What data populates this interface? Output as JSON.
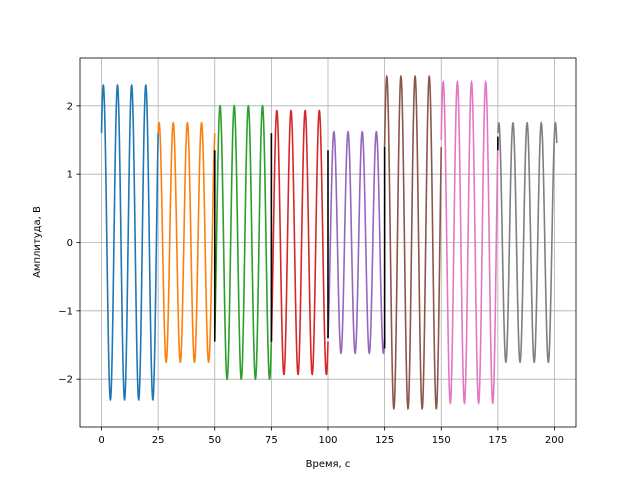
{
  "chart_data": {
    "type": "line",
    "xlabel": "Время, с",
    "ylabel": "Амплитуда, В",
    "xlim": [
      -9.5,
      209.5
    ],
    "ylim": [
      -2.7,
      2.7
    ],
    "xticks": [
      0,
      25,
      50,
      75,
      100,
      125,
      150,
      175,
      200
    ],
    "yticks": [
      -2,
      -1,
      0,
      1,
      2
    ],
    "ytick_labels": [
      "−2",
      "−1",
      "0",
      "1",
      "2"
    ],
    "grid": true,
    "legend": "none",
    "segments": [
      {
        "x_start": 0,
        "x_end": 25,
        "amplitude": 2.3,
        "period": 6.25,
        "start_value": 1.6,
        "color": "#1f77b4"
      },
      {
        "x_start": 25,
        "x_end": 50,
        "amplitude": 1.75,
        "period": 6.25,
        "start_value": 1.6,
        "color": "#ff7f0e"
      },
      {
        "x_start": 50,
        "x_end": 75,
        "amplitude": 2.0,
        "period": 6.25,
        "start_value": -1.4,
        "color": "#2ca02c"
      },
      {
        "x_start": 75,
        "x_end": 100,
        "amplitude": 1.93,
        "period": 6.25,
        "start_value": -1.45,
        "color": "#d62728"
      },
      {
        "x_start": 100,
        "x_end": 125,
        "amplitude": 1.62,
        "period": 6.25,
        "start_value": -1.4,
        "color": "#9467bd"
      },
      {
        "x_start": 125,
        "x_end": 150,
        "amplitude": 2.43,
        "period": 6.25,
        "start_value": 1.4,
        "color": "#8c564b"
      },
      {
        "x_start": 150,
        "x_end": 175,
        "amplitude": 2.35,
        "period": 6.25,
        "start_value": 1.5,
        "color": "#e377c2"
      },
      {
        "x_start": 175,
        "x_end": 201,
        "amplitude": 1.75,
        "period": 6.25,
        "start_value": 1.6,
        "color": "#7f7f7f"
      }
    ],
    "connectors": [
      {
        "x": 50,
        "y_from": 1.35,
        "y_to": -1.45,
        "color": "#000000"
      },
      {
        "x": 75,
        "y_from": 1.6,
        "y_to": -1.45,
        "color": "#000000"
      },
      {
        "x": 100,
        "y_from": 1.35,
        "y_to": -1.4,
        "color": "#000000"
      },
      {
        "x": 125,
        "y_from": -1.55,
        "y_to": 1.4,
        "color": "#000000"
      },
      {
        "x": 175,
        "y_from": 1.35,
        "y_to": 1.55,
        "color": "#000000"
      }
    ]
  }
}
